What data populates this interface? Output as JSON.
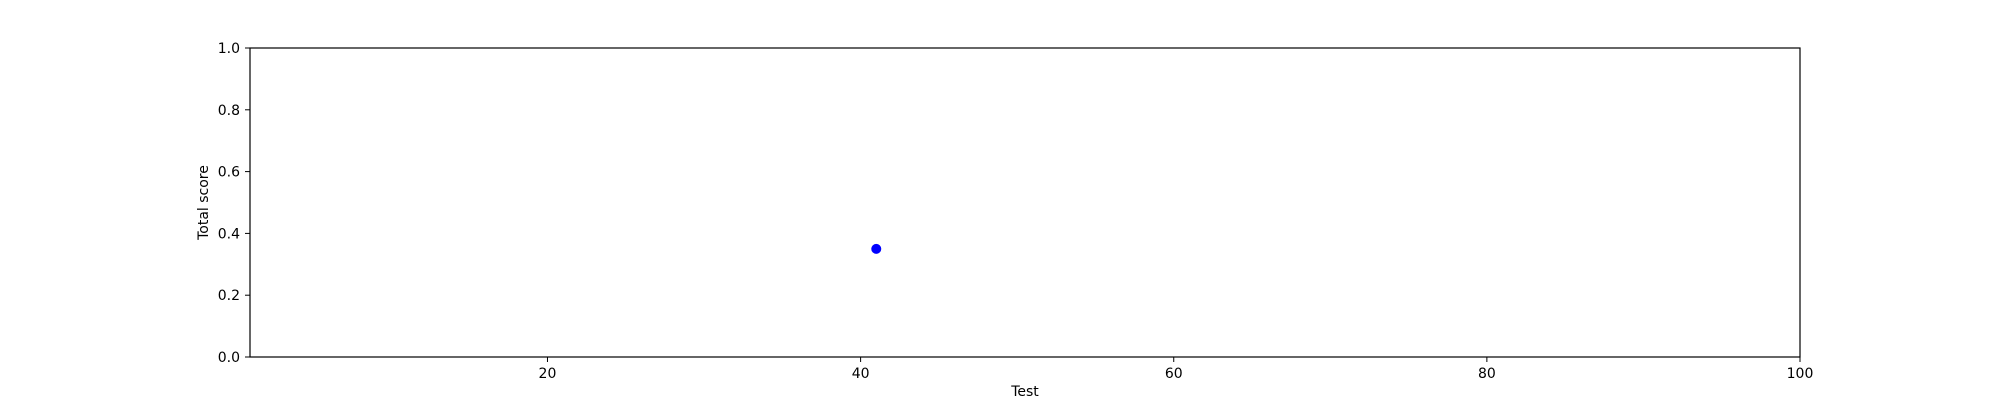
{
  "chart_data": {
    "type": "scatter",
    "title": "",
    "xlabel": "Test",
    "ylabel": "Total score",
    "xlim": [
      1,
      100
    ],
    "ylim": [
      0.0,
      1.0
    ],
    "xticks": [
      20,
      40,
      60,
      80,
      100
    ],
    "yticks": [
      0.0,
      0.2,
      0.4,
      0.6,
      0.8,
      1.0
    ],
    "xtick_labels": [
      "20",
      "40",
      "60",
      "80",
      "100"
    ],
    "ytick_labels": [
      "0.0",
      "0.2",
      "0.4",
      "0.6",
      "0.8",
      "1.0"
    ],
    "grid": false,
    "legend": "none",
    "series": [
      {
        "color": "#0000ff",
        "points": [
          {
            "x": 41,
            "y": 0.35
          }
        ]
      }
    ]
  }
}
